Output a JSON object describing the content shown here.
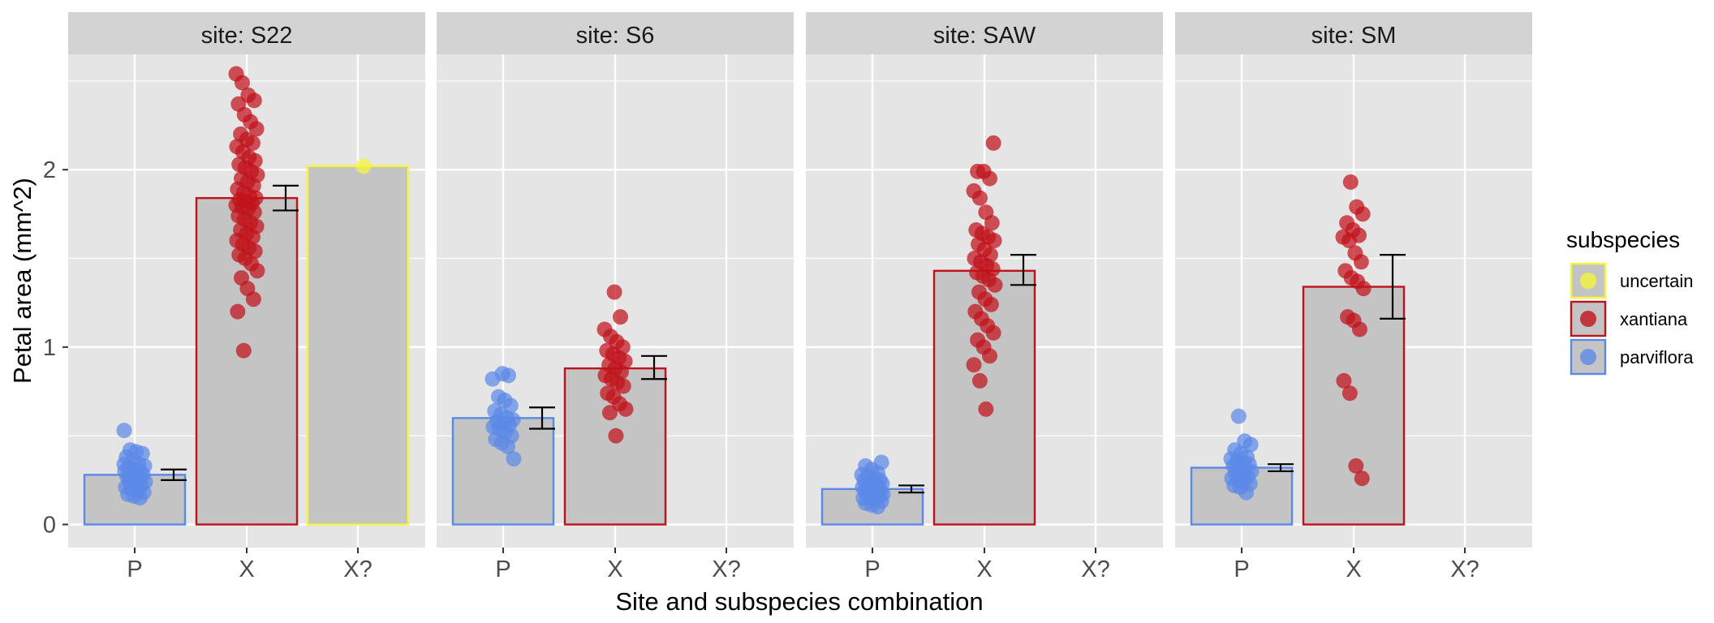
{
  "chart_data": {
    "type": "bar",
    "subtype": "faceted bar chart with jittered points and error bars",
    "xlabel": "Site and subspecies combination",
    "ylabel": "Petal area (mm^2)",
    "ylim": [
      -0.13,
      2.65
    ],
    "yticks": [
      0,
      1,
      2
    ],
    "facet_prefix": "site: ",
    "categories": [
      "P",
      "X",
      "X?"
    ],
    "legend": {
      "title": "subspecies",
      "entries": [
        {
          "key": "uncertain",
          "label": "uncertain",
          "color": "#f5f53a"
        },
        {
          "key": "xantiana",
          "label": "xantiana",
          "color": "#c0121b"
        },
        {
          "key": "parviflora",
          "label": "parviflora",
          "color": "#5b89e8"
        }
      ]
    },
    "colors": {
      "panel_bg": "#e5e5e5",
      "strip_bg": "#d3d3d3",
      "grid": "#ffffff",
      "bar_fill": "#c4c4c4"
    },
    "facets": [
      {
        "site": "S22",
        "bars": [
          {
            "category": "P",
            "subspecies": "parviflora",
            "mean": 0.28,
            "err_low": 0.25,
            "err_high": 0.31,
            "points": [
              0.53,
              0.42,
              0.41,
              0.4,
              0.38,
              0.36,
              0.34,
              0.33,
              0.32,
              0.31,
              0.3,
              0.3,
              0.29,
              0.28,
              0.28,
              0.27,
              0.26,
              0.25,
              0.24,
              0.24,
              0.23,
              0.22,
              0.21,
              0.2,
              0.19,
              0.18,
              0.17,
              0.16,
              0.15,
              0.34,
              0.26,
              0.22
            ]
          },
          {
            "category": "X",
            "subspecies": "xantiana",
            "mean": 1.84,
            "err_low": 1.77,
            "err_high": 1.91,
            "points": [
              2.54,
              2.49,
              2.42,
              2.39,
              2.37,
              2.31,
              2.27,
              2.23,
              2.2,
              2.17,
              2.15,
              2.13,
              2.1,
              2.07,
              2.05,
              2.03,
              2.01,
              1.99,
              1.97,
              1.95,
              1.93,
              1.91,
              1.89,
              1.87,
              1.85,
              1.84,
              1.83,
              1.82,
              1.81,
              1.8,
              1.79,
              1.78,
              1.76,
              1.74,
              1.72,
              1.7,
              1.68,
              1.66,
              1.64,
              1.62,
              1.6,
              1.58,
              1.56,
              1.54,
              1.52,
              1.5,
              1.47,
              1.43,
              1.39,
              1.33,
              1.27,
              1.2,
              0.98
            ]
          },
          {
            "category": "X?",
            "subspecies": "uncertain",
            "mean": 2.02,
            "err_low": null,
            "err_high": null,
            "points": [
              2.02
            ]
          }
        ]
      },
      {
        "site": "S6",
        "bars": [
          {
            "category": "P",
            "subspecies": "parviflora",
            "mean": 0.6,
            "err_low": 0.54,
            "err_high": 0.66,
            "points": [
              0.85,
              0.84,
              0.82,
              0.72,
              0.7,
              0.67,
              0.64,
              0.62,
              0.6,
              0.59,
              0.58,
              0.57,
              0.56,
              0.55,
              0.54,
              0.52,
              0.5,
              0.48,
              0.46,
              0.44,
              0.37
            ]
          },
          {
            "category": "X",
            "subspecies": "xantiana",
            "mean": 0.88,
            "err_low": 0.82,
            "err_high": 0.95,
            "points": [
              1.31,
              1.17,
              1.1,
              1.06,
              1.03,
              1.0,
              0.98,
              0.96,
              0.94,
              0.92,
              0.9,
              0.88,
              0.86,
              0.84,
              0.82,
              0.8,
              0.78,
              0.74,
              0.72,
              0.68,
              0.65,
              0.63,
              0.5
            ]
          }
        ]
      },
      {
        "site": "SAW",
        "bars": [
          {
            "category": "P",
            "subspecies": "parviflora",
            "mean": 0.2,
            "err_low": 0.18,
            "err_high": 0.22,
            "points": [
              0.35,
              0.33,
              0.31,
              0.29,
              0.28,
              0.27,
              0.26,
              0.25,
              0.25,
              0.24,
              0.23,
              0.23,
              0.22,
              0.22,
              0.21,
              0.21,
              0.2,
              0.2,
              0.19,
              0.19,
              0.18,
              0.18,
              0.17,
              0.17,
              0.16,
              0.16,
              0.15,
              0.15,
              0.14,
              0.13,
              0.12,
              0.11,
              0.1
            ]
          },
          {
            "category": "X",
            "subspecies": "xantiana",
            "mean": 1.43,
            "err_low": 1.35,
            "err_high": 1.52,
            "points": [
              2.15,
              1.99,
              1.99,
              1.95,
              1.88,
              1.84,
              1.76,
              1.7,
              1.66,
              1.64,
              1.62,
              1.6,
              1.58,
              1.55,
              1.52,
              1.5,
              1.48,
              1.46,
              1.44,
              1.42,
              1.4,
              1.38,
              1.35,
              1.31,
              1.27,
              1.24,
              1.2,
              1.16,
              1.12,
              1.08,
              1.04,
              1.0,
              0.95,
              0.9,
              0.81,
              0.65
            ]
          }
        ]
      },
      {
        "site": "SM",
        "bars": [
          {
            "category": "P",
            "subspecies": "parviflora",
            "mean": 0.32,
            "err_low": 0.3,
            "err_high": 0.34,
            "points": [
              0.61,
              0.47,
              0.45,
              0.42,
              0.4,
              0.38,
              0.37,
              0.36,
              0.35,
              0.34,
              0.33,
              0.32,
              0.31,
              0.3,
              0.29,
              0.28,
              0.27,
              0.26,
              0.25,
              0.24,
              0.23,
              0.22,
              0.21,
              0.18
            ]
          },
          {
            "category": "X",
            "subspecies": "xantiana",
            "mean": 1.34,
            "err_low": 1.16,
            "err_high": 1.52,
            "points": [
              1.93,
              1.79,
              1.75,
              1.7,
              1.66,
              1.63,
              1.62,
              1.6,
              1.53,
              1.48,
              1.43,
              1.39,
              1.37,
              1.33,
              1.17,
              1.15,
              1.1,
              0.81,
              0.74,
              0.33,
              0.26
            ]
          }
        ]
      }
    ]
  }
}
